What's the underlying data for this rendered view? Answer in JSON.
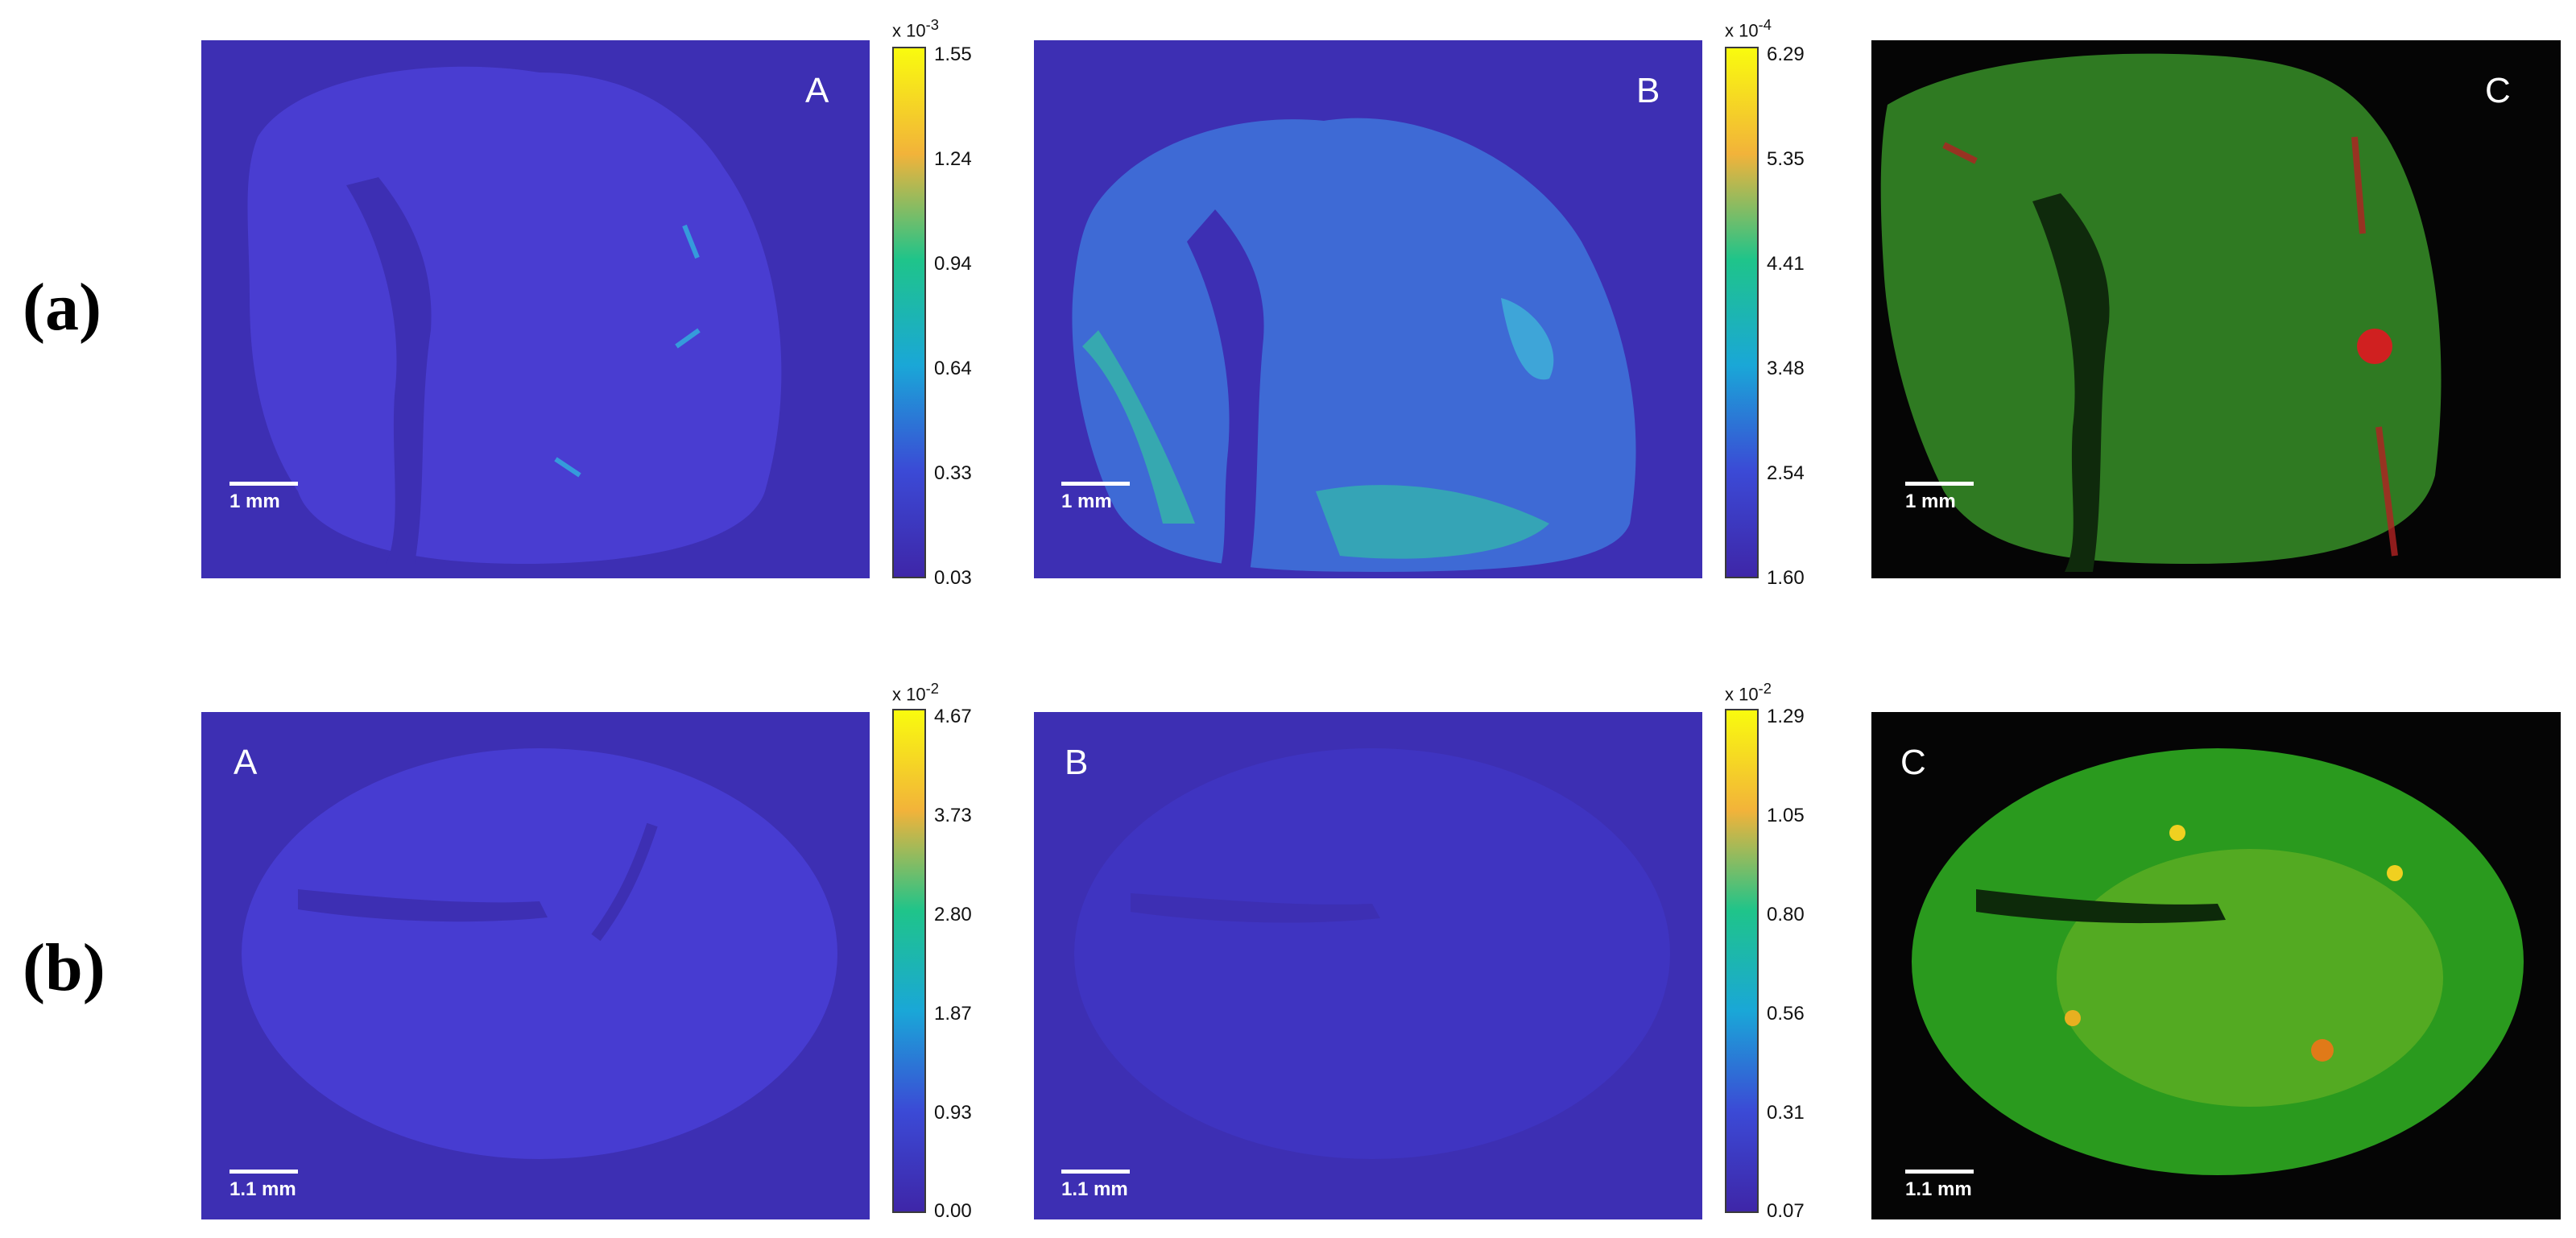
{
  "rows": [
    {
      "label": "(a)",
      "panels": [
        {
          "letter": "A",
          "scale": "1 mm",
          "colorbar": {
            "exponent": "x 10",
            "power": "-3",
            "ticks": [
              "1.55",
              "1.24",
              "0.94",
              "0.64",
              "0.33",
              "0.03"
            ]
          }
        },
        {
          "letter": "B",
          "scale": "1 mm",
          "colorbar": {
            "exponent": "x 10",
            "power": "-4",
            "ticks": [
              "6.29",
              "5.35",
              "4.41",
              "3.48",
              "2.54",
              "1.60"
            ]
          }
        },
        {
          "letter": "C",
          "scale": "1 mm"
        }
      ]
    },
    {
      "label": "(b)",
      "panels": [
        {
          "letter": "A",
          "scale": "1.1 mm",
          "colorbar": {
            "exponent": "x 10",
            "power": "-2",
            "ticks": [
              "4.67",
              "3.73",
              "2.80",
              "1.87",
              "0.93",
              "0.00"
            ]
          }
        },
        {
          "letter": "B",
          "scale": "1.1 mm",
          "colorbar": {
            "exponent": "x 10",
            "power": "-2",
            "ticks": [
              "1.29",
              "1.05",
              "0.80",
              "0.56",
              "0.31",
              "0.07"
            ]
          }
        },
        {
          "letter": "C",
          "scale": "1.1 mm"
        }
      ]
    }
  ],
  "colors": {
    "map_background": "#3d2fb3",
    "overlay_background": "#050505",
    "colormap": [
      "#f9fb0e",
      "#f2b33a",
      "#1fc48a",
      "#1aa7d7",
      "#3b4ad6",
      "#3e26a8"
    ]
  }
}
